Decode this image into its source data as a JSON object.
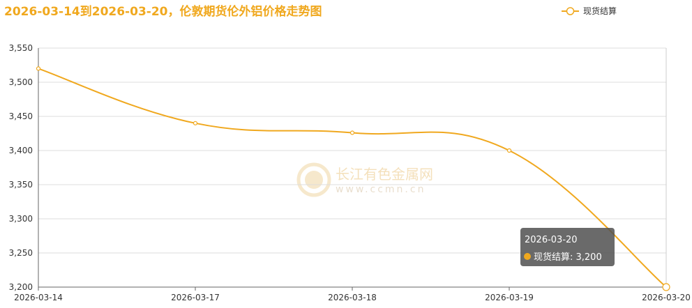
{
  "chart_data": {
    "type": "line",
    "title": "2026-03-14到2026-03-20，伦敦期货伦外铝价格走势图",
    "categories": [
      "2026-03-14",
      "2026-03-17",
      "2026-03-18",
      "2026-03-19",
      "2026-03-20"
    ],
    "series": [
      {
        "name": "现货结算",
        "color": "#f0a81e",
        "values": [
          3520,
          3440,
          3426,
          3400,
          3200
        ]
      }
    ],
    "ylim": [
      3200,
      3550
    ],
    "yticks": [
      {
        "value": 3200,
        "label": "3,200"
      },
      {
        "value": 3250,
        "label": "3,250"
      },
      {
        "value": 3300,
        "label": "3,300"
      },
      {
        "value": 3350,
        "label": "3,350"
      },
      {
        "value": 3400,
        "label": "3,400"
      },
      {
        "value": 3450,
        "label": "3,450"
      },
      {
        "value": 3500,
        "label": "3,500"
      },
      {
        "value": 3550,
        "label": "3,550"
      }
    ],
    "grid": true,
    "legend": "top-right",
    "tooltip": {
      "title": "2026-03-20",
      "text": "现货结算: 3,200"
    },
    "watermark": {
      "name": "长江有色金属网",
      "url": "www.ccmn.cn"
    }
  }
}
